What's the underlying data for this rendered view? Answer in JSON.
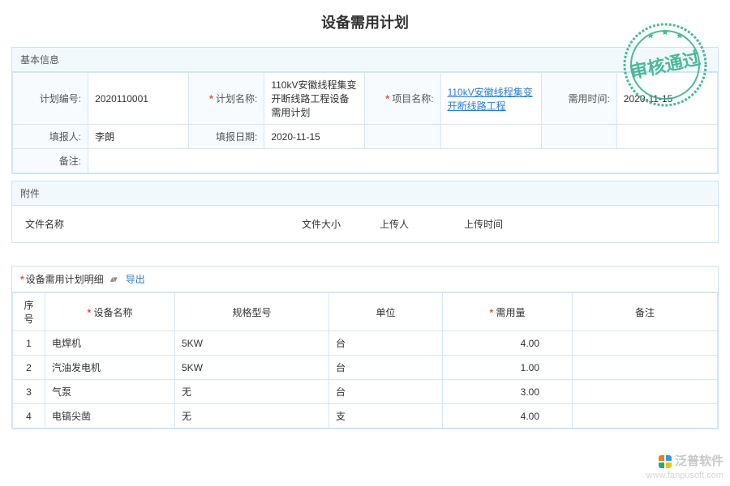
{
  "title": "设备需用计划",
  "stamp_text": "审核通过",
  "basic": {
    "heading": "基本信息",
    "plan_no_label": "计划编号:",
    "plan_no": "2020110001",
    "plan_name_label": "计划名称:",
    "plan_name": "110kV安徽线程集变开断线路工程设备需用计划",
    "project_name_label": "项目名称:",
    "project_name": "110kV安徽线程集变开断线路工程",
    "need_time_label": "需用时间:",
    "need_time": "2020-11-15",
    "reporter_label": "填报人:",
    "reporter": "李朗",
    "report_date_label": "填报日期:",
    "report_date": "2020-11-15",
    "remark_label": "备注:",
    "remark": ""
  },
  "attach": {
    "heading": "附件",
    "columns": {
      "fname": "文件名称",
      "fsize": "文件大小",
      "uploader": "上传人",
      "uptime": "上传时间"
    }
  },
  "detail": {
    "title": "设备需用计划明细",
    "export_label": "导出",
    "columns": {
      "seq": "序号",
      "name": "设备名称",
      "spec": "规格型号",
      "unit": "单位",
      "qty": "需用量",
      "remark": "备注"
    },
    "rows": [
      {
        "seq": "1",
        "name": "电焊机",
        "spec": "5KW",
        "unit": "台",
        "qty": "4.00",
        "remark": ""
      },
      {
        "seq": "2",
        "name": "汽油发电机",
        "spec": "5KW",
        "unit": "台",
        "qty": "1.00",
        "remark": ""
      },
      {
        "seq": "3",
        "name": "气泵",
        "spec": "无",
        "unit": "台",
        "qty": "3.00",
        "remark": ""
      },
      {
        "seq": "4",
        "name": "电镐尖凿",
        "spec": "无",
        "unit": "支",
        "qty": "4.00",
        "remark": ""
      }
    ]
  },
  "watermark": {
    "brand": "泛普软件",
    "url": "www.fanpusoft.com"
  },
  "colors": {
    "border": "#cde4f2",
    "header_bg": "#f2f9fd",
    "link": "#2b7dd2",
    "required": "#e74c3c",
    "stamp": "#2fae85"
  }
}
